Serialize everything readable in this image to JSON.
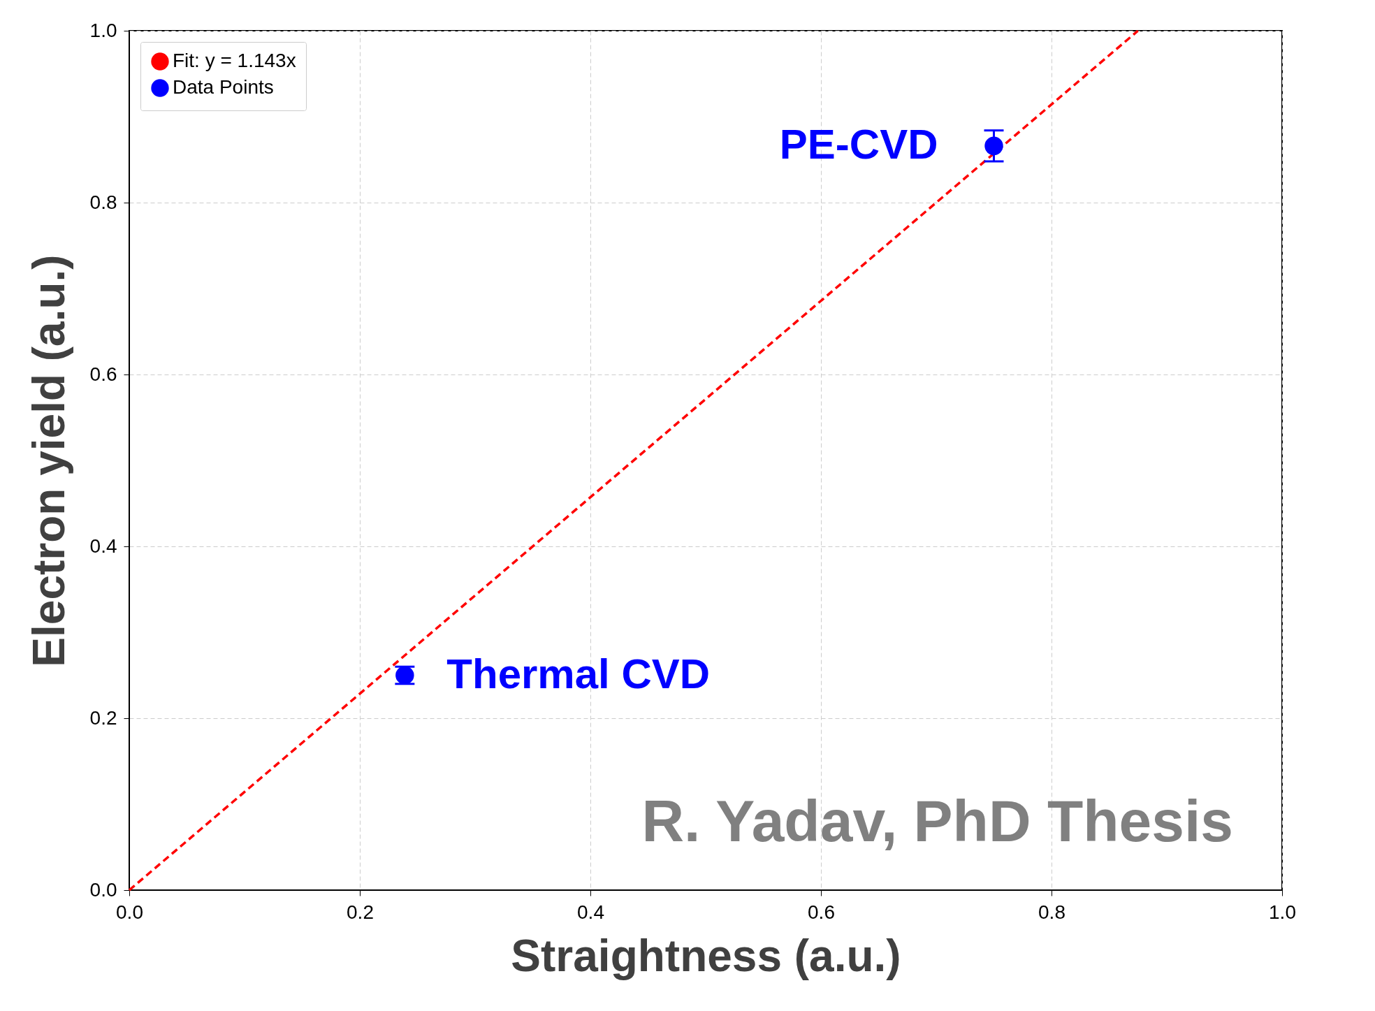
{
  "chart_data": {
    "type": "scatter",
    "xlabel": "Straightness (a.u.)",
    "ylabel": "Electron yield (a.u.)",
    "xlim": [
      0,
      1
    ],
    "ylim": [
      0,
      1
    ],
    "xticks": [
      {
        "value": 0,
        "label": "0.0"
      },
      0.2,
      0.4,
      0.6,
      0.8,
      {
        "value": 1,
        "label": "1.0"
      }
    ],
    "yticks": [
      {
        "value": 0,
        "label": "0.0"
      },
      0.2,
      0.4,
      0.6,
      0.8,
      {
        "value": 1,
        "label": "1.0"
      }
    ],
    "grid": true,
    "legend": "top left",
    "marker": "circle",
    "series": [
      {
        "name": "Fit: y = 1.143x",
        "type": "line",
        "color": "#ff0000",
        "line_style": "dashed",
        "marker": "none",
        "x": [
          0,
          0.875
        ],
        "values": [
          0,
          1.0
        ]
      },
      {
        "name": "Data Points",
        "type": "scatter",
        "color": "#0000ff",
        "x": [
          0.239,
          0.75
        ],
        "values": [
          0.25,
          0.866
        ],
        "errors": [
          0.01,
          0.018
        ]
      }
    ],
    "annotations": [
      {
        "text": "PE-CVD",
        "x": 0.75,
        "y": 0.866
      },
      {
        "text": "Thermal CVD",
        "x": 0.239,
        "y": 0.25
      },
      "R. Yadav, PhD Thesis"
    ]
  }
}
